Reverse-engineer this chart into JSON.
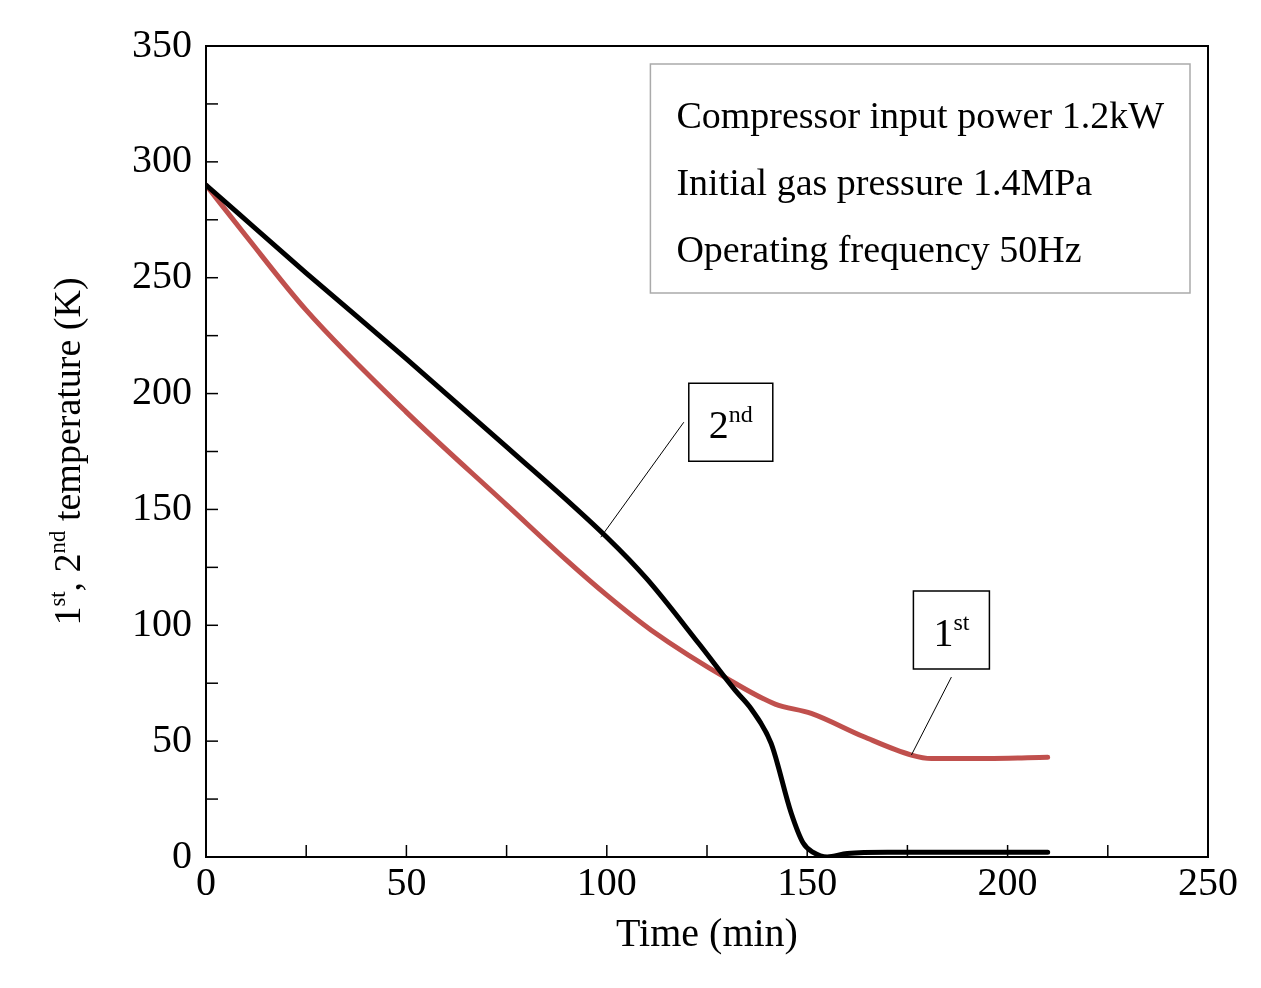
{
  "chart_data": {
    "type": "line",
    "xlabel": "Time (min)",
    "ylabel": "1$^{st}$, 2$^{nd}$ temperature (K)",
    "xlim": [
      0,
      250
    ],
    "xticks": [
      0,
      {
        "value": 25,
        "label": null
      },
      50,
      {
        "value": 75,
        "label": null
      },
      100,
      {
        "value": 125,
        "label": null
      },
      150,
      {
        "value": 175,
        "label": null
      },
      200,
      {
        "value": 225,
        "label": null
      },
      250
    ],
    "ylim": [
      0,
      350
    ],
    "yticks": [
      0,
      {
        "value": 25,
        "label": null
      },
      50,
      {
        "value": 75,
        "label": null
      },
      100,
      {
        "value": 125,
        "label": null
      },
      150,
      {
        "value": 175,
        "label": null
      },
      200,
      {
        "value": 225,
        "label": null
      },
      250,
      {
        "value": 275,
        "label": null
      },
      300,
      {
        "value": 325,
        "label": null
      },
      350
    ],
    "grid": false,
    "marker": "none",
    "line_style": "solid",
    "series": [
      {
        "color": "#000000",
        "x": [
          0,
          25,
          50,
          75,
          100,
          110,
          123,
          132,
          136,
          141,
          146,
          149,
          151.5,
          155,
          160,
          170,
          190,
          210
        ],
        "values": [
          290,
          252,
          215,
          177,
          138,
          120,
          92,
          72,
          64,
          49,
          19,
          6,
          2,
          0,
          1.5,
          2,
          2,
          2
        ]
      },
      {
        "color": "#c0504d",
        "x": [
          0,
          10,
          25,
          50,
          75,
          90,
          100,
          111,
          131,
          142,
          151,
          164,
          176,
          181,
          195,
          210
        ],
        "values": [
          290,
          268,
          236,
          192,
          152,
          128,
          113,
          98,
          76,
          66,
          62,
          52,
          44,
          42.5,
          42.5,
          43
        ]
      }
    ],
    "annotations": [
      "Compressor input power 1.2kW",
      "Initial gas pressure 1.4MPa",
      "Operating frequency 50Hz",
      {
        "text": "2$^{nd}$",
        "x": 98.5,
        "y": 138
      },
      {
        "text": "1$^{st}$",
        "x": 176,
        "y": 44
      }
    ]
  }
}
